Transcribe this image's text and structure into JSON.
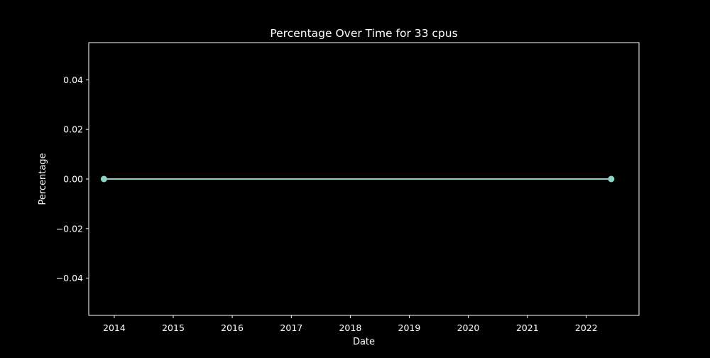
{
  "chart_data": {
    "type": "line",
    "title": "Percentage Over Time for 33 cpus",
    "xlabel": "Date",
    "ylabel": "Percentage",
    "x_ticks": [
      "2014",
      "2015",
      "2016",
      "2017",
      "2018",
      "2019",
      "2020",
      "2021",
      "2022"
    ],
    "y_ticks": [
      "−0.04",
      "−0.02",
      "0.00",
      "0.02",
      "0.04"
    ],
    "xlim": [
      "2013-07-27",
      "2022-11-23"
    ],
    "ylim": [
      -0.055,
      0.055
    ],
    "grid": false,
    "series": [
      {
        "x": [
          "2013-10-29",
          "2022-06-04"
        ],
        "y": [
          0.0,
          0.0
        ],
        "color": "#8dd3c7",
        "marker": "circle"
      }
    ]
  },
  "colors": {
    "background": "#000000",
    "axes": "#ffffff",
    "text": "#ffffff",
    "series": "#8dd3c7"
  }
}
